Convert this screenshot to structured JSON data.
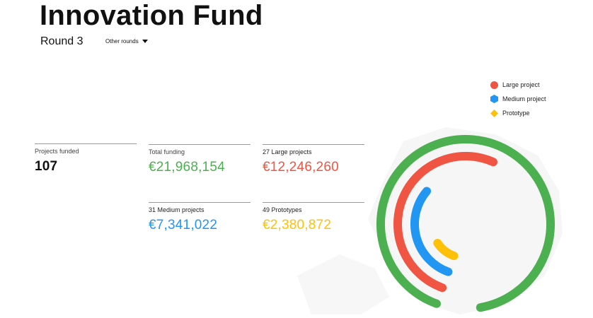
{
  "header": {
    "title": "Innovation Fund",
    "round": "Round 3",
    "other_rounds_label": "Other rounds",
    "dropdown_icon": "caret-down-icon"
  },
  "legend": [
    {
      "label": "Large project",
      "color": "#f05442",
      "shape": "circle"
    },
    {
      "label": "Medium project",
      "color": "#2196f3",
      "shape": "hexagon"
    },
    {
      "label": "Prototype",
      "color": "#ffc107",
      "shape": "diamond"
    }
  ],
  "stats": {
    "projects_funded": {
      "label": "Projects funded",
      "value": "107",
      "color": "#111111"
    },
    "total_funding": {
      "label": "Total funding",
      "value": "€21,968,154",
      "color": "#4caf50"
    },
    "large": {
      "label": "27 Large projects",
      "value": "€12,246,260",
      "color": "#f05442"
    },
    "medium": {
      "label": "31 Medium projects",
      "value": "€7,341,022",
      "color": "#2196f3"
    },
    "prototype": {
      "label": "49 Prototypes",
      "value": "€2,380,872",
      "color": "#ffc107"
    }
  },
  "chart_data": {
    "type": "radial-bar",
    "title": "",
    "series": [
      {
        "name": "Total funding",
        "value": 21968154,
        "color": "#4caf50"
      },
      {
        "name": "Large project",
        "value": 12246260,
        "color": "#f05442"
      },
      {
        "name": "Medium project",
        "value": 7341022,
        "color": "#2196f3"
      },
      {
        "name": "Prototype",
        "value": 2380872,
        "color": "#ffc107"
      }
    ],
    "max": 21968154
  }
}
